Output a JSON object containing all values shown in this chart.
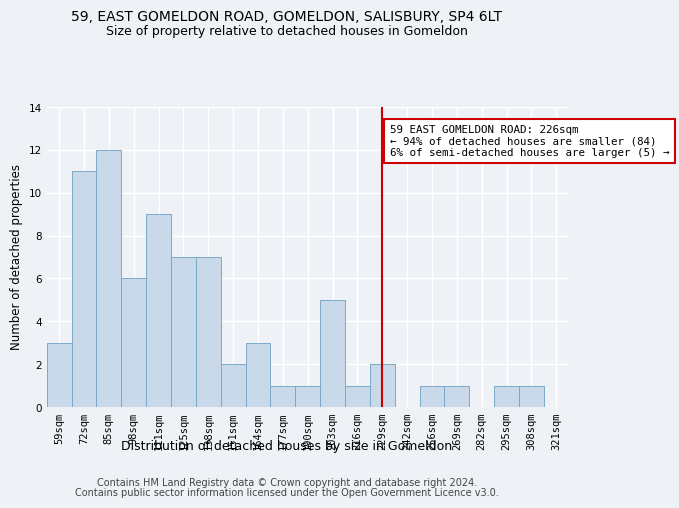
{
  "title": "59, EAST GOMELDON ROAD, GOMELDON, SALISBURY, SP4 6LT",
  "subtitle": "Size of property relative to detached houses in Gomeldon",
  "xlabel": "Distribution of detached houses by size in Gomeldon",
  "ylabel": "Number of detached properties",
  "categories": [
    "59sqm",
    "72sqm",
    "85sqm",
    "98sqm",
    "111sqm",
    "125sqm",
    "138sqm",
    "151sqm",
    "164sqm",
    "177sqm",
    "190sqm",
    "203sqm",
    "216sqm",
    "229sqm",
    "242sqm",
    "256sqm",
    "269sqm",
    "282sqm",
    "295sqm",
    "308sqm",
    "321sqm"
  ],
  "values": [
    3,
    11,
    12,
    6,
    9,
    7,
    7,
    2,
    3,
    1,
    1,
    5,
    1,
    2,
    0,
    1,
    1,
    0,
    1,
    1,
    0
  ],
  "bar_color": "#c9d9ea",
  "bar_edge_color": "#7aaac8",
  "background_color": "#eef2f7",
  "grid_color": "#ffffff",
  "red_line_index": 13,
  "annotation_text": "59 EAST GOMELDON ROAD: 226sqm\n← 94% of detached houses are smaller (84)\n6% of semi-detached houses are larger (5) →",
  "annotation_box_color": "#ffffff",
  "annotation_border_color": "#cc0000",
  "footer1": "Contains HM Land Registry data © Crown copyright and database right 2024.",
  "footer2": "Contains public sector information licensed under the Open Government Licence v3.0.",
  "ylim": [
    0,
    14
  ],
  "yticks": [
    0,
    2,
    4,
    6,
    8,
    10,
    12,
    14
  ],
  "title_fontsize": 10,
  "subtitle_fontsize": 9,
  "ylabel_fontsize": 8.5,
  "xlabel_fontsize": 9,
  "tick_fontsize": 7.5,
  "footer_fontsize": 7,
  "annot_fontsize": 7.8
}
